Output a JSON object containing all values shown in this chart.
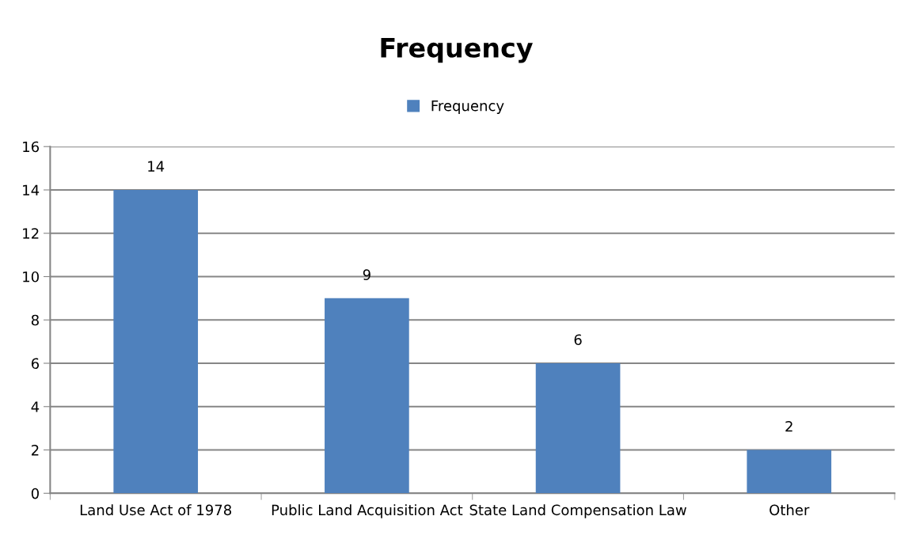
{
  "chart_data": {
    "type": "bar",
    "title": "Frequency",
    "categories": [
      "Land Use Act of 1978",
      "Public Land Acquisition Act",
      "State Land Compensation Law",
      "Other"
    ],
    "series": [
      {
        "name": "Frequency",
        "color": "#4f81bd",
        "values": [
          14,
          9,
          6,
          2
        ]
      }
    ],
    "ylim": [
      0,
      16
    ],
    "yticks": [
      0,
      2,
      4,
      6,
      8,
      10,
      12,
      14,
      16
    ],
    "grid": "y",
    "legend": "top",
    "data_labels": true
  }
}
